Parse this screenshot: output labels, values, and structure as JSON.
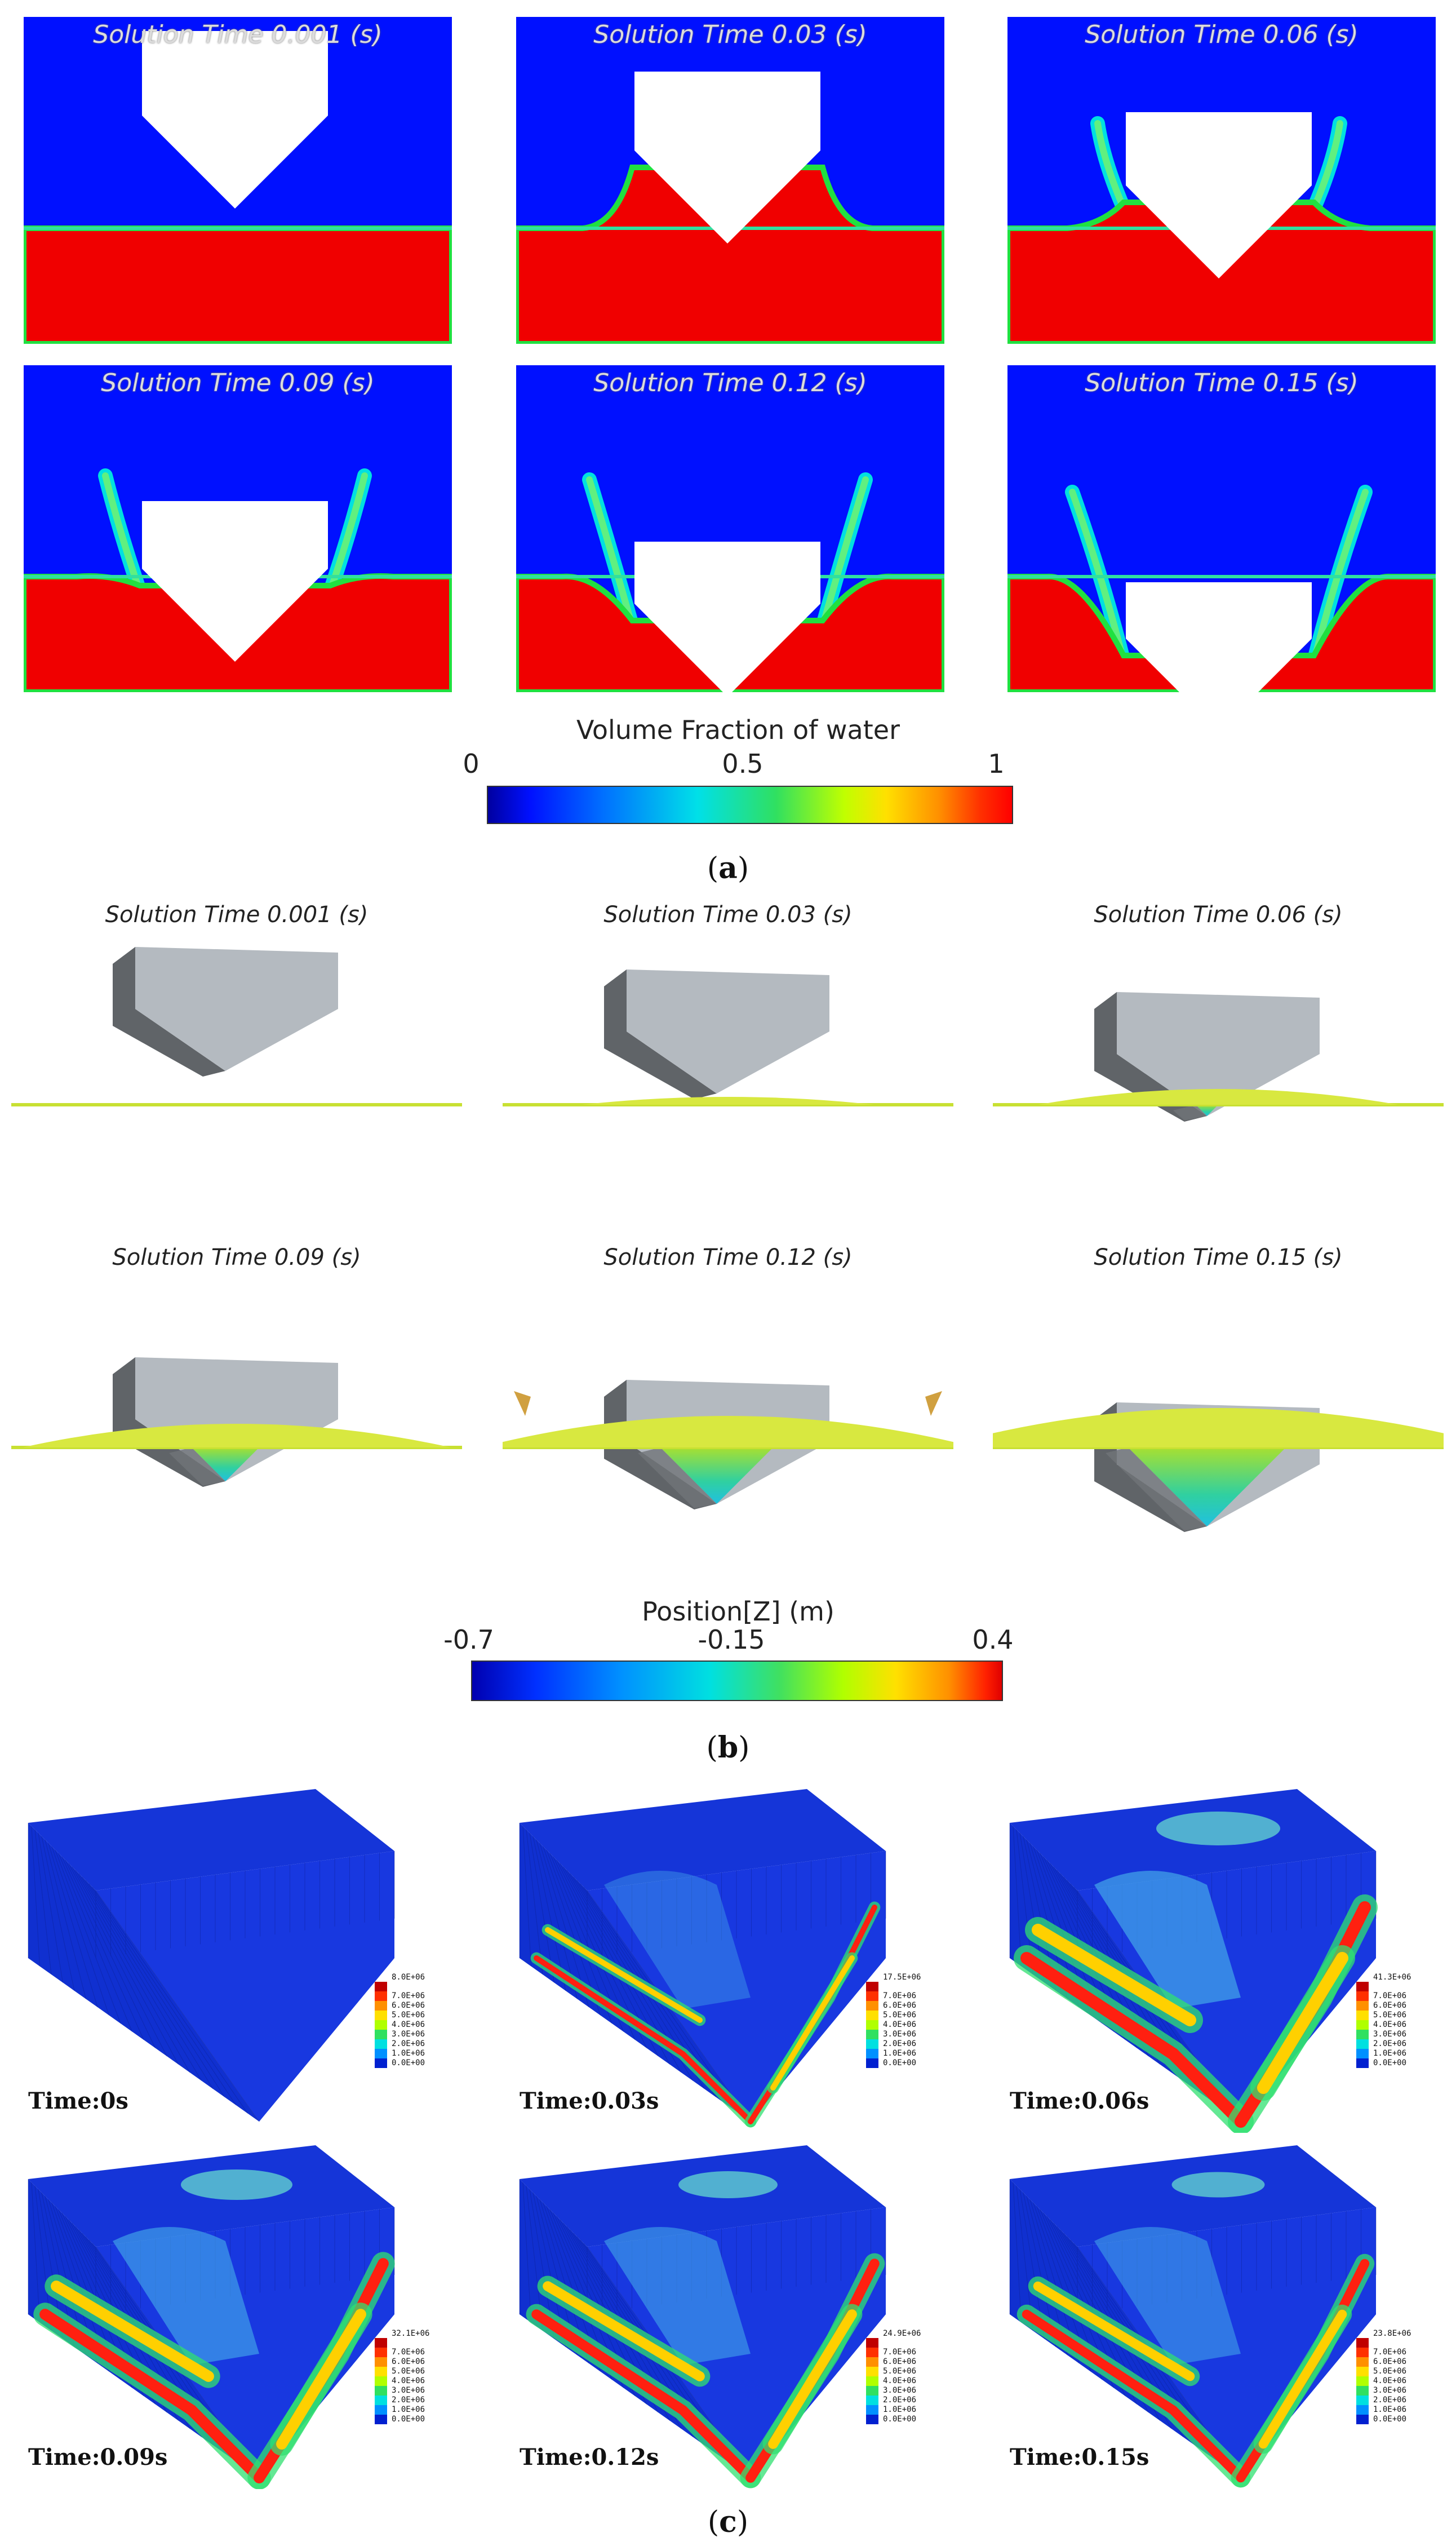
{
  "part_a": {
    "panels": [
      {
        "label": "Solution Time 0.001 (s)",
        "step": 0
      },
      {
        "label": "Solution Time 0.03 (s)",
        "step": 1
      },
      {
        "label": "Solution Time 0.06 (s)",
        "step": 2
      },
      {
        "label": "Solution Time 0.09 (s)",
        "step": 3
      },
      {
        "label": "Solution Time 0.12 (s)",
        "step": 4
      },
      {
        "label": "Solution Time 0.15 (s)",
        "step": 5
      }
    ],
    "colorbar": {
      "title": "Volume Fraction of water",
      "min": "0",
      "mid": "0.5",
      "max": "1"
    },
    "caption": "a"
  },
  "part_b": {
    "panels": [
      {
        "label": "Solution Time 0.001 (s)",
        "step": 0
      },
      {
        "label": "Solution Time 0.03 (s)",
        "step": 1
      },
      {
        "label": "Solution Time 0.06 (s)",
        "step": 2
      },
      {
        "label": "Solution Time 0.09 (s)",
        "step": 3
      },
      {
        "label": "Solution Time 0.12 (s)",
        "step": 4
      },
      {
        "label": "Solution Time 0.15 (s)",
        "step": 5
      }
    ],
    "colorbar": {
      "title": "Position[Z] (m)",
      "min": "-0.7",
      "mid": "-0.15",
      "max": "0.4"
    },
    "caption": "b"
  },
  "part_c": {
    "panels": [
      {
        "label": "Time:0s",
        "max_label": "8.0E+06",
        "stress_level": 0
      },
      {
        "label": "Time:0.03s",
        "max_label": "17.5E+06",
        "stress_level": 0.45
      },
      {
        "label": "Time:0.06s",
        "max_label": "41.3E+06",
        "stress_level": 1.0
      },
      {
        "label": "Time:0.09s",
        "max_label": "32.1E+06",
        "stress_level": 0.9
      },
      {
        "label": "Time:0.12s",
        "max_label": "24.9E+06",
        "stress_level": 0.8
      },
      {
        "label": "Time:0.15s",
        "max_label": "23.8E+06",
        "stress_level": 0.75
      }
    ],
    "legend_ticks": [
      "8.0E+06",
      "7.0E+06",
      "6.0E+06",
      "5.0E+06",
      "4.0E+06",
      "3.0E+06",
      "2.0E+06",
      "1.0E+06",
      "0.0E+00"
    ],
    "caption": "c"
  },
  "colors": {
    "water_red": "#f00000",
    "air_blue": "#0010ff",
    "body_gray": "#b4bac0",
    "surface_yellow": "#c8e032"
  }
}
